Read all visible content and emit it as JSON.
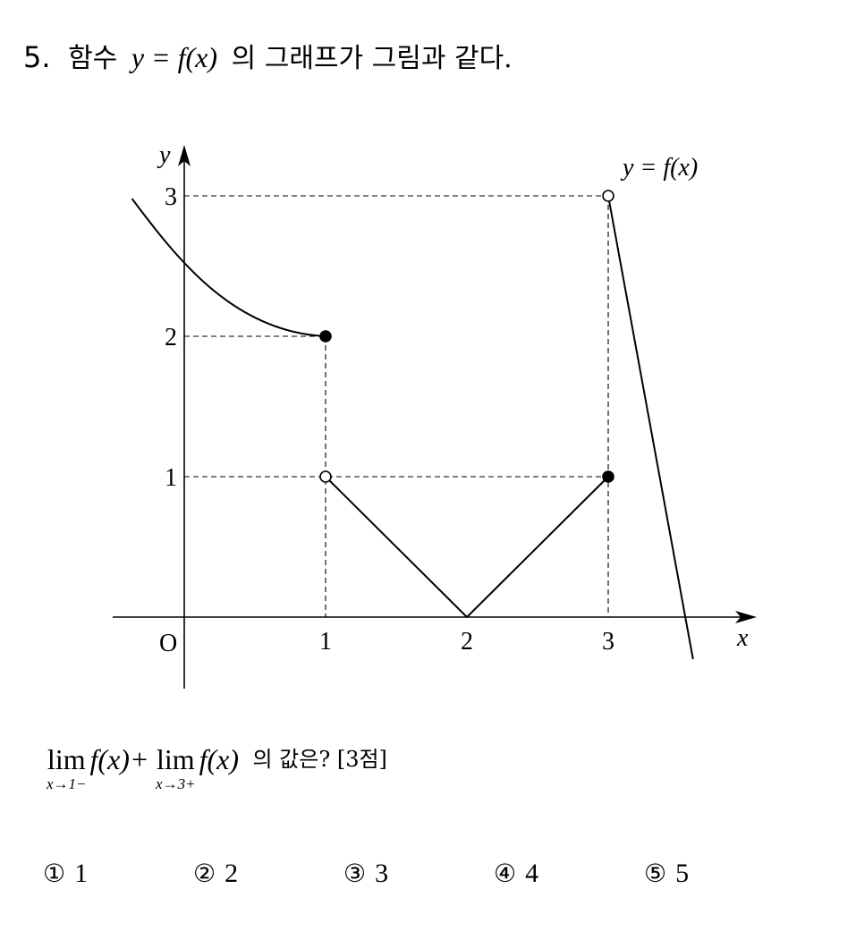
{
  "problem": {
    "number": "5.",
    "text_before": "함수",
    "math": "y = f(x)",
    "text_after": "의 그래프가 그림과 같다."
  },
  "graph": {
    "axis_x_label": "x",
    "axis_y_label": "y",
    "origin_label": "O",
    "x_ticks": [
      "1",
      "2",
      "3"
    ],
    "y_ticks": [
      "1",
      "2",
      "3"
    ],
    "curve_label": "y = f(x)",
    "points": [
      {
        "x": 1,
        "y": 2,
        "filled": true
      },
      {
        "x": 1,
        "y": 1,
        "filled": false
      },
      {
        "x": 3,
        "y": 1,
        "filled": true
      },
      {
        "x": 3,
        "y": 3,
        "filled": false
      }
    ],
    "segments": [
      {
        "from": [
          1,
          1
        ],
        "to": [
          2,
          0
        ]
      },
      {
        "from": [
          2,
          0
        ],
        "to": [
          3,
          1
        ]
      },
      {
        "from": [
          3,
          3
        ],
        "to": [
          3.6,
          -0.3
        ]
      }
    ],
    "curve": {
      "from_x": -0.37,
      "to_x": 1,
      "end_y": 2
    }
  },
  "question": {
    "lim1_word": "lim",
    "lim1_sub": "x→1−",
    "lim1_expr": "f(x)+",
    "lim2_word": "lim",
    "lim2_sub": "x→3+",
    "lim2_expr": "f(x)",
    "rest": "의 값은? [3점]"
  },
  "choices": [
    {
      "mark": "①",
      "value": "1"
    },
    {
      "mark": "②",
      "value": "2"
    },
    {
      "mark": "③",
      "value": "3"
    },
    {
      "mark": "④",
      "value": "4"
    },
    {
      "mark": "⑤",
      "value": "5"
    }
  ]
}
